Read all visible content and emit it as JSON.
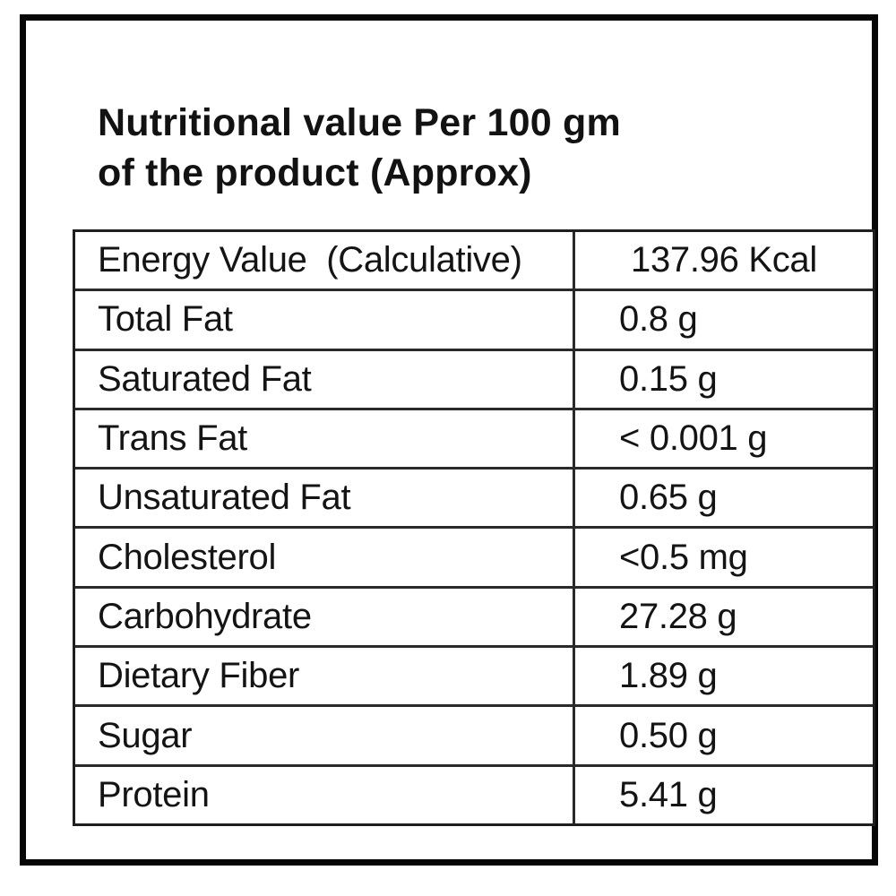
{
  "title": {
    "line1": "Nutritional value Per 100 gm",
    "line2": "of the product (Approx)"
  },
  "colors": {
    "frame_border": "#060606",
    "table_border": "#1f1f1f",
    "text": "#121212",
    "background": "#ffffff"
  },
  "table": {
    "rows": [
      {
        "label": "Energy Value  (Calculative)",
        "value": "137.96 Kcal"
      },
      {
        "label": "Total Fat",
        "value": "0.8 g"
      },
      {
        "label": "Saturated Fat",
        "value": "0.15 g"
      },
      {
        "label": "Trans Fat",
        "value": "< 0.001 g"
      },
      {
        "label": "Unsaturated Fat",
        "value": "0.65 g"
      },
      {
        "label": "Cholesterol",
        "value": "<0.5 mg"
      },
      {
        "label": "Carbohydrate",
        "value": "27.28 g"
      },
      {
        "label": "Dietary Fiber",
        "value": "1.89 g"
      },
      {
        "label": "Sugar",
        "value": "0.50 g"
      },
      {
        "label": "Protein",
        "value": "5.41 g"
      }
    ]
  }
}
